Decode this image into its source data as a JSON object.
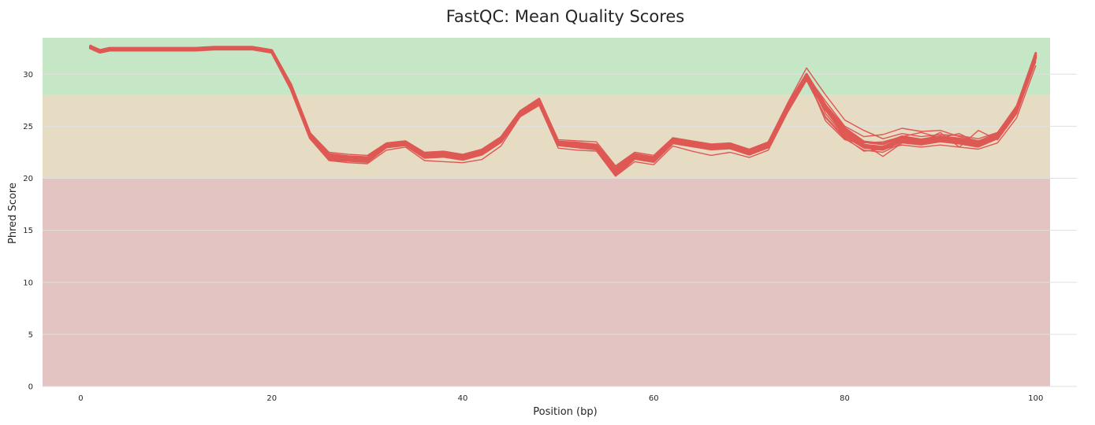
{
  "chart_data": {
    "type": "line",
    "title": "FastQC: Mean Quality Scores",
    "xlabel": "Position (bp)",
    "ylabel": "Phred Score",
    "xlim": [
      -4,
      101.5
    ],
    "ylim": [
      0,
      33.5
    ],
    "x_ticks": [
      0,
      20,
      40,
      60,
      80,
      100
    ],
    "y_ticks": [
      0,
      5,
      10,
      15,
      20,
      25,
      30
    ],
    "grid": true,
    "legend": "none",
    "bands": [
      {
        "from": 28,
        "to": 33.5,
        "color": "#c5e7c5"
      },
      {
        "from": 20,
        "to": 28,
        "color": "#e6dbc3"
      },
      {
        "from": 0,
        "to": 20,
        "color": "#e4c3c3"
      }
    ],
    "series_color": "#de5854",
    "x": [
      1,
      2,
      3,
      4,
      6,
      8,
      10,
      12,
      14,
      16,
      18,
      20,
      22,
      24,
      26,
      28,
      30,
      32,
      34,
      36,
      38,
      40,
      42,
      44,
      46,
      48,
      50,
      52,
      54,
      56,
      58,
      60,
      62,
      64,
      66,
      68,
      70,
      72,
      74,
      76,
      78,
      80,
      82,
      84,
      86,
      88,
      90,
      92,
      94,
      96,
      98,
      100
    ],
    "series": [
      {
        "values": [
          32.7,
          32.3,
          32.5,
          32.5,
          32.5,
          32.5,
          32.5,
          32.5,
          32.6,
          32.6,
          32.6,
          32.3,
          29.0,
          24.3,
          22.3,
          22.1,
          22.0,
          23.3,
          23.5,
          22.4,
          22.5,
          22.2,
          22.7,
          23.9,
          26.4,
          27.6,
          23.5,
          23.4,
          23.2,
          21.0,
          22.3,
          22.0,
          23.8,
          23.5,
          23.2,
          23.3,
          22.7,
          23.4,
          27.0,
          30.0,
          27.0,
          24.8,
          23.5,
          23.3,
          24.0,
          23.7,
          24.0,
          23.8,
          23.5,
          24.3,
          26.8,
          32.0
        ]
      },
      {
        "values": [
          32.6,
          32.2,
          32.4,
          32.4,
          32.4,
          32.4,
          32.4,
          32.4,
          32.5,
          32.5,
          32.5,
          32.2,
          28.8,
          24.1,
          22.0,
          21.9,
          21.8,
          23.2,
          23.4,
          22.2,
          22.3,
          22.0,
          22.5,
          23.7,
          26.2,
          27.4,
          23.4,
          23.2,
          23.0,
          20.6,
          22.1,
          21.8,
          23.6,
          23.3,
          23.0,
          23.1,
          22.5,
          23.2,
          26.8,
          29.8,
          26.8,
          24.5,
          23.2,
          23.0,
          23.8,
          23.5,
          23.8,
          23.6,
          23.3,
          24.1,
          26.6,
          31.8
        ]
      },
      {
        "values": [
          32.5,
          32.1,
          32.3,
          32.3,
          32.3,
          32.3,
          32.3,
          32.3,
          32.4,
          32.4,
          32.4,
          32.1,
          28.6,
          23.9,
          21.8,
          21.7,
          21.6,
          23.0,
          23.2,
          22.0,
          22.1,
          21.8,
          22.3,
          23.5,
          26.0,
          27.2,
          23.2,
          23.0,
          22.8,
          20.3,
          21.9,
          21.6,
          23.4,
          23.1,
          22.8,
          22.9,
          22.3,
          23.0,
          26.6,
          29.6,
          26.6,
          24.2,
          23.0,
          22.8,
          23.6,
          23.3,
          23.6,
          23.4,
          23.1,
          23.9,
          26.4,
          31.6
        ]
      },
      {
        "values": [
          32.8,
          32.3,
          32.5,
          32.5,
          32.5,
          32.5,
          32.5,
          32.5,
          32.6,
          32.6,
          32.6,
          32.3,
          29.1,
          24.4,
          22.5,
          22.3,
          22.2,
          23.4,
          23.6,
          22.5,
          22.6,
          22.3,
          22.8,
          24.0,
          26.5,
          27.7,
          23.7,
          23.6,
          23.5,
          21.2,
          22.5,
          22.2,
          23.9,
          23.6,
          23.3,
          23.4,
          22.8,
          23.5,
          27.2,
          30.6,
          28.0,
          25.6,
          24.6,
          23.8,
          24.3,
          24.0,
          24.2,
          24.1,
          23.8,
          24.4,
          27.0,
          32.1
        ]
      },
      {
        "values": [
          32.7,
          32.2,
          32.4,
          32.4,
          32.4,
          32.4,
          32.4,
          32.4,
          32.5,
          32.5,
          32.5,
          32.2,
          28.9,
          24.2,
          22.2,
          22.0,
          21.9,
          23.3,
          23.5,
          22.3,
          22.4,
          22.1,
          22.6,
          23.8,
          26.3,
          27.5,
          23.5,
          23.3,
          23.1,
          20.8,
          22.2,
          21.9,
          23.7,
          23.4,
          23.1,
          23.2,
          22.6,
          23.3,
          26.9,
          29.9,
          26.2,
          24.0,
          22.9,
          22.7,
          23.5,
          23.4,
          23.7,
          23.5,
          23.2,
          24.0,
          26.5,
          31.7
        ]
      },
      {
        "values": [
          32.6,
          32.2,
          32.4,
          32.4,
          32.4,
          32.4,
          32.4,
          32.4,
          32.5,
          32.5,
          32.5,
          32.2,
          28.7,
          24.0,
          22.1,
          21.9,
          21.8,
          23.1,
          23.3,
          22.2,
          22.3,
          22.0,
          22.5,
          23.6,
          26.1,
          27.3,
          23.3,
          23.1,
          22.9,
          20.5,
          22.0,
          21.7,
          23.5,
          23.2,
          22.9,
          23.0,
          22.4,
          23.1,
          26.7,
          29.7,
          25.8,
          23.8,
          22.7,
          22.5,
          23.4,
          23.2,
          23.5,
          23.3,
          23.0,
          23.8,
          26.3,
          31.5
        ]
      },
      {
        "values": [
          32.7,
          32.3,
          32.5,
          32.5,
          32.5,
          32.5,
          32.5,
          32.5,
          32.6,
          32.6,
          32.6,
          32.3,
          28.9,
          24.3,
          22.2,
          22.0,
          21.9,
          23.3,
          23.5,
          22.3,
          22.4,
          22.1,
          22.6,
          23.8,
          26.3,
          27.5,
          23.4,
          23.3,
          23.1,
          20.7,
          22.2,
          21.9,
          23.7,
          23.4,
          23.1,
          23.2,
          22.6,
          23.3,
          26.9,
          29.9,
          27.4,
          25.0,
          24.0,
          24.2,
          24.8,
          24.5,
          24.6,
          24.0,
          23.6,
          24.2,
          26.9,
          31.9
        ]
      },
      {
        "values": [
          32.6,
          32.2,
          32.4,
          32.4,
          32.4,
          32.4,
          32.4,
          32.4,
          32.5,
          32.5,
          32.5,
          32.2,
          28.8,
          24.1,
          22.1,
          21.9,
          21.8,
          23.2,
          23.4,
          22.2,
          22.3,
          22.0,
          22.5,
          23.7,
          26.2,
          27.4,
          23.4,
          23.2,
          23.0,
          20.6,
          22.1,
          21.8,
          23.6,
          23.3,
          23.0,
          23.1,
          22.5,
          23.2,
          26.8,
          29.8,
          25.5,
          23.7,
          23.3,
          22.1,
          23.4,
          23.5,
          24.4,
          23.0,
          24.6,
          23.7,
          26.2,
          31.2
        ]
      },
      {
        "values": [
          32.5,
          32.1,
          32.3,
          32.3,
          32.3,
          32.3,
          32.3,
          32.3,
          32.4,
          32.4,
          32.4,
          32.1,
          28.6,
          23.8,
          21.7,
          21.5,
          21.4,
          22.7,
          23.0,
          21.7,
          21.6,
          21.5,
          21.8,
          23.1,
          25.9,
          27.0,
          22.9,
          22.7,
          22.6,
          20.2,
          21.6,
          21.3,
          23.1,
          22.6,
          22.2,
          22.5,
          22.0,
          22.7,
          26.3,
          29.4,
          25.9,
          23.9,
          22.6,
          22.8,
          23.2,
          23.0,
          23.2,
          23.0,
          22.8,
          23.4,
          25.8,
          30.8
        ]
      },
      {
        "values": [
          32.6,
          32.2,
          32.4,
          32.4,
          32.4,
          32.4,
          32.4,
          32.4,
          32.5,
          32.5,
          32.5,
          32.2,
          28.8,
          24.0,
          22.0,
          21.8,
          21.7,
          23.1,
          23.3,
          22.1,
          22.2,
          21.9,
          22.4,
          23.6,
          26.1,
          27.3,
          23.3,
          23.1,
          22.9,
          20.5,
          22.0,
          21.7,
          23.5,
          23.2,
          22.9,
          23.0,
          22.4,
          23.1,
          26.7,
          29.7,
          26.5,
          24.6,
          23.4,
          23.5,
          24.0,
          24.4,
          23.9,
          24.3,
          23.4,
          23.9,
          26.4,
          31.4
        ]
      }
    ]
  }
}
